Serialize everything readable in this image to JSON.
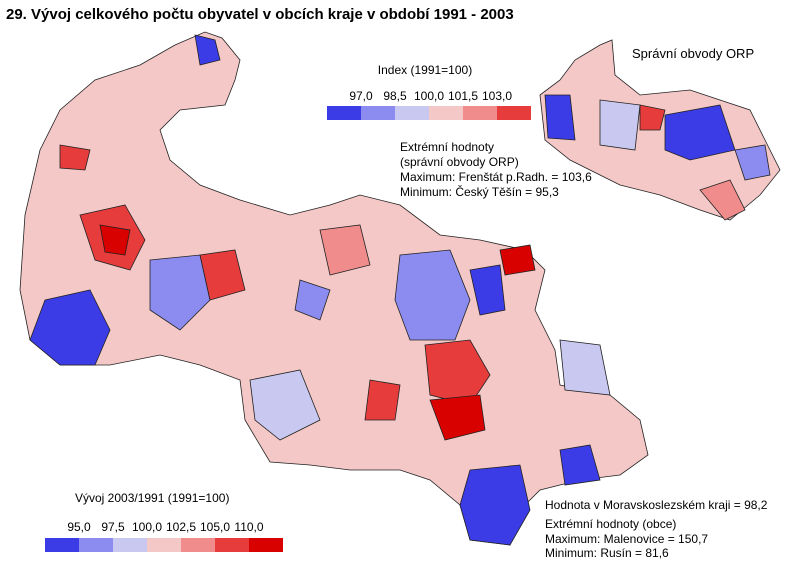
{
  "title": "29. Vývoj celkového počtu obyvatel v obcích kraje v období 1991 - 2003",
  "inset": {
    "title": "Správní obvody  ORP"
  },
  "orp_legend": {
    "title": "Index (1991=100)",
    "labels": [
      "97,0",
      "98,5",
      "100,0",
      "101,5",
      "103,0"
    ],
    "colors": [
      "#3c3ce6",
      "#8c8cf0",
      "#c8c8f0",
      "#f5c8c8",
      "#f08c8c",
      "#e63c3c"
    ]
  },
  "orp_extremes": {
    "lines": [
      "Extrémní hodnoty",
      "(správní obvody ORP)",
      "Maximum: Frenštát p.Radh. = 103,6",
      "Minimum: Český Těšín = 95,3"
    ]
  },
  "municipal_legend": {
    "title": "Vývoj 2003/1991 (1991=100)",
    "labels": [
      "95,0",
      "97,5",
      "100,0",
      "102,5",
      "105,0",
      "110,0"
    ],
    "colors": [
      "#3c3ce6",
      "#8c8cf0",
      "#c8c8f0",
      "#f5c8c8",
      "#f08c8c",
      "#e63c3c",
      "#d90000"
    ]
  },
  "notes": {
    "lines": [
      "Hodnota v Moravskoslezském kraji = 98,2",
      "Extrémní hodnoty (obce)",
      "Maximum: Malenovice = 150,7",
      "Minimum: Rusín = 81,6"
    ]
  }
}
